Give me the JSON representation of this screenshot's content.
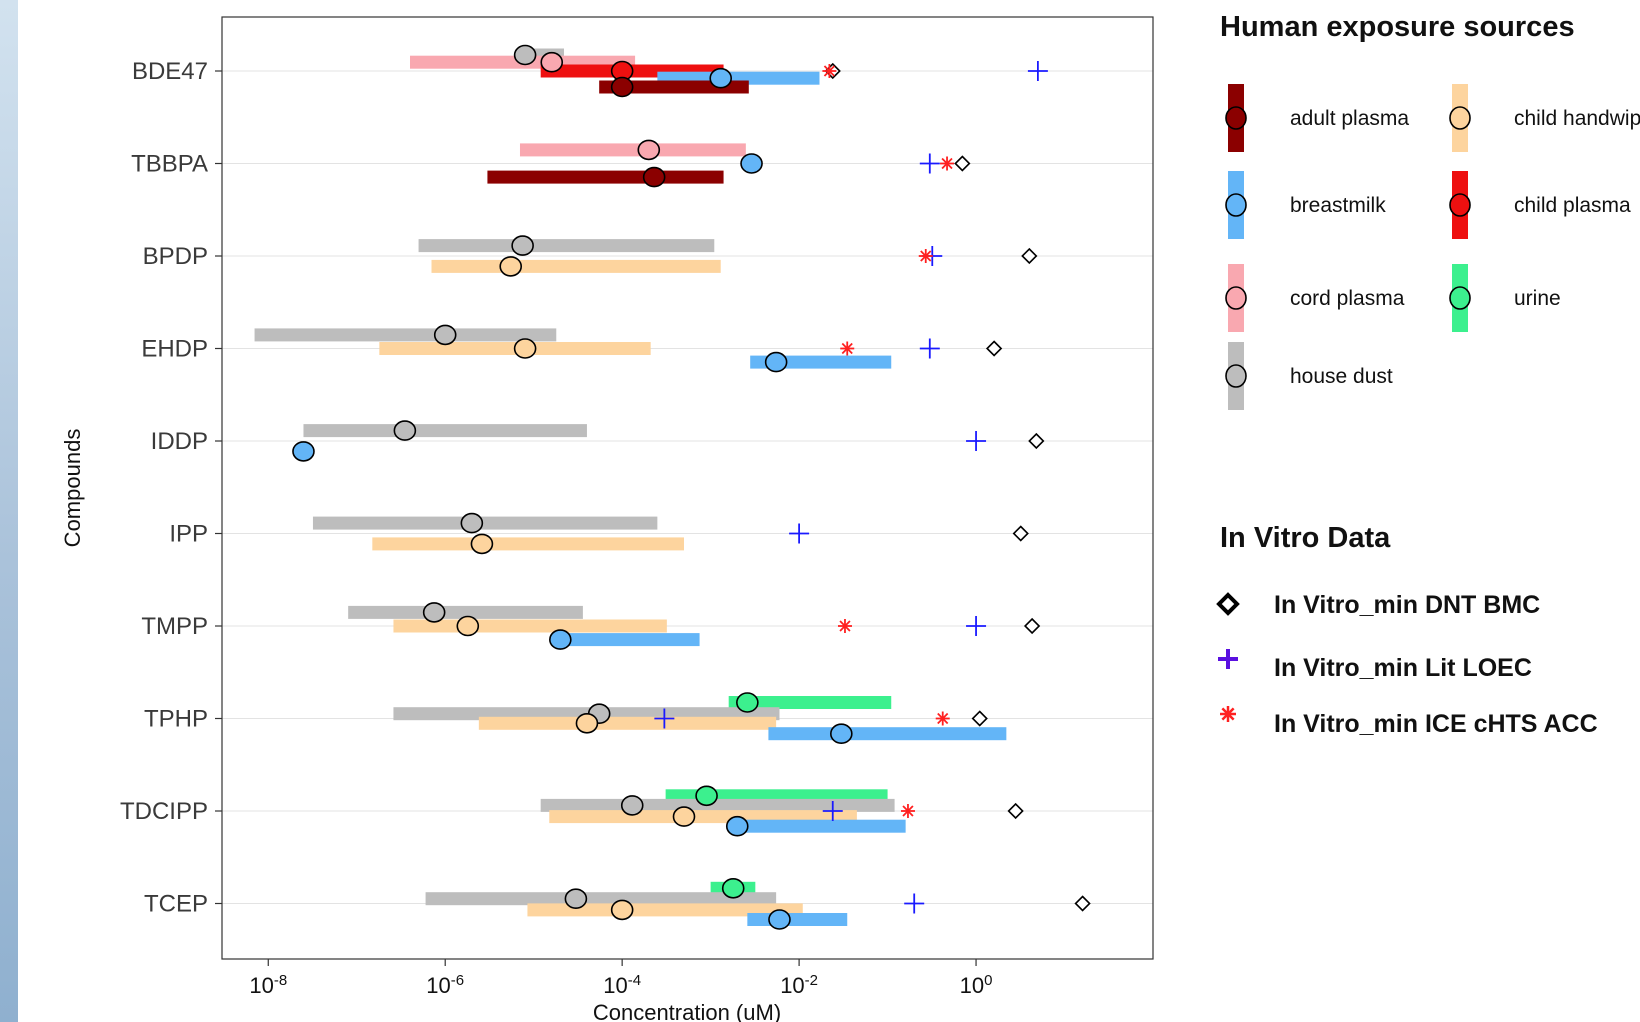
{
  "chart_data": {
    "type": "range-dot",
    "ylabel": "Compounds",
    "xlabel": "Concentration (uM)",
    "x_scale": "log10",
    "xlim": [
      3e-09,
      100
    ],
    "x_ticks": [
      {
        "value": 1e-08,
        "base": "10",
        "exp": "-8"
      },
      {
        "value": 1e-06,
        "base": "10",
        "exp": "-6"
      },
      {
        "value": 0.0001,
        "base": "10",
        "exp": "-4"
      },
      {
        "value": 0.01,
        "base": "10",
        "exp": "-2"
      },
      {
        "value": 1,
        "base": "10",
        "exp": "0"
      }
    ],
    "grid": "horizontal",
    "categories": [
      "BDE47",
      "TBBPA",
      "BPDP",
      "EHDP",
      "IDDP",
      "IPP",
      "TMPP",
      "TPHP",
      "TDCIPP",
      "TCEP"
    ],
    "colors": {
      "adult plasma": "#8b0000",
      "breastmilk": "#63b5f7",
      "cord plasma": "#f9a8b0",
      "house dust": "#bdbdbd",
      "child handwipe": "#fdd49e",
      "child plasma": "#ee1010",
      "urine": "#3cf08e"
    },
    "human_exposure": [
      {
        "compound": "BDE47",
        "source": "house dust",
        "min": 8e-06,
        "max": 2.2e-05,
        "median": 8e-06,
        "offset": -1
      },
      {
        "compound": "BDE47",
        "source": "cord plasma",
        "min": 4e-07,
        "max": 0.00014,
        "median": 1.6e-05,
        "offset": -0.55
      },
      {
        "compound": "BDE47",
        "source": "child plasma",
        "min": 1.2e-05,
        "max": 0.0014,
        "median": 0.0001,
        "offset": 0
      },
      {
        "compound": "BDE47",
        "source": "breastmilk",
        "min": 0.00025,
        "max": 0.017,
        "median": 0.0013,
        "offset": 0.45
      },
      {
        "compound": "BDE47",
        "source": "adult plasma",
        "min": 5.5e-05,
        "max": 0.0027,
        "median": 0.0001,
        "offset": 1
      },
      {
        "compound": "TBBPA",
        "source": "cord plasma",
        "min": 7e-06,
        "max": 0.0025,
        "median": 0.0002,
        "offset": -0.85
      },
      {
        "compound": "TBBPA",
        "source": "breastmilk",
        "min": 0.0029,
        "max": 0.0029,
        "median": 0.0029,
        "offset": 0
      },
      {
        "compound": "TBBPA",
        "source": "adult plasma",
        "min": 3e-06,
        "max": 0.0014,
        "median": 0.00023,
        "offset": 0.85
      },
      {
        "compound": "BPDP",
        "source": "house dust",
        "min": 5e-07,
        "max": 0.0011,
        "median": 7.5e-06,
        "offset": -0.65
      },
      {
        "compound": "BPDP",
        "source": "child handwipe",
        "min": 7e-07,
        "max": 0.0013,
        "median": 5.5e-06,
        "offset": 0.65
      },
      {
        "compound": "EHDP",
        "source": "house dust",
        "min": 7e-09,
        "max": 1.8e-05,
        "median": 1e-06,
        "offset": -0.85
      },
      {
        "compound": "EHDP",
        "source": "child handwipe",
        "min": 1.8e-07,
        "max": 0.00021,
        "median": 8e-06,
        "offset": 0
      },
      {
        "compound": "EHDP",
        "source": "breastmilk",
        "min": 0.0028,
        "max": 0.11,
        "median": 0.0055,
        "offset": 0.85
      },
      {
        "compound": "IDDP",
        "source": "house dust",
        "min": 2.5e-08,
        "max": 4e-05,
        "median": 3.5e-07,
        "offset": -0.65
      },
      {
        "compound": "IDDP",
        "source": "breastmilk",
        "min": 2.5e-08,
        "max": 2.5e-08,
        "median": 2.5e-08,
        "offset": 0.65
      },
      {
        "compound": "IPP",
        "source": "house dust",
        "min": 3.2e-08,
        "max": 0.00025,
        "median": 2e-06,
        "offset": -0.65
      },
      {
        "compound": "IPP",
        "source": "child handwipe",
        "min": 1.5e-07,
        "max": 0.0005,
        "median": 2.6e-06,
        "offset": 0.65
      },
      {
        "compound": "TMPP",
        "source": "house dust",
        "min": 8e-08,
        "max": 3.6e-05,
        "median": 7.5e-07,
        "offset": -0.85
      },
      {
        "compound": "TMPP",
        "source": "child handwipe",
        "min": 2.6e-07,
        "max": 0.00032,
        "median": 1.8e-06,
        "offset": 0
      },
      {
        "compound": "TMPP",
        "source": "breastmilk",
        "min": 2e-05,
        "max": 0.00075,
        "median": 2e-05,
        "offset": 0.85
      },
      {
        "compound": "TPHP",
        "source": "urine",
        "min": 0.0016,
        "max": 0.11,
        "median": 0.0026,
        "offset": -1
      },
      {
        "compound": "TPHP",
        "source": "house dust",
        "min": 2.6e-07,
        "max": 0.006,
        "median": 5.5e-05,
        "offset": -0.3
      },
      {
        "compound": "TPHP",
        "source": "child handwipe",
        "min": 2.4e-06,
        "max": 0.0055,
        "median": 4e-05,
        "offset": 0.3
      },
      {
        "compound": "TPHP",
        "source": "breastmilk",
        "min": 0.0045,
        "max": 2.2,
        "median": 0.03,
        "offset": 0.95
      },
      {
        "compound": "TDCIPP",
        "source": "urine",
        "min": 0.00031,
        "max": 0.1,
        "median": 0.0009,
        "offset": -0.95
      },
      {
        "compound": "TDCIPP",
        "source": "house dust",
        "min": 1.2e-05,
        "max": 0.12,
        "median": 0.00013,
        "offset": -0.35
      },
      {
        "compound": "TDCIPP",
        "source": "child handwipe",
        "min": 1.5e-05,
        "max": 0.045,
        "median": 0.0005,
        "offset": 0.35
      },
      {
        "compound": "TDCIPP",
        "source": "breastmilk",
        "min": 0.002,
        "max": 0.16,
        "median": 0.002,
        "offset": 0.95
      },
      {
        "compound": "TCEP",
        "source": "urine",
        "min": 0.001,
        "max": 0.0032,
        "median": 0.0018,
        "offset": -0.95
      },
      {
        "compound": "TCEP",
        "source": "house dust",
        "min": 6e-07,
        "max": 0.0055,
        "median": 3e-05,
        "offset": -0.3
      },
      {
        "compound": "TCEP",
        "source": "child handwipe",
        "min": 8.5e-06,
        "max": 0.011,
        "median": 0.0001,
        "offset": 0.4
      },
      {
        "compound": "TCEP",
        "source": "breastmilk",
        "min": 0.0026,
        "max": 0.035,
        "median": 0.006,
        "offset": 1
      }
    ],
    "in_vitro": [
      {
        "compound": "BDE47",
        "type": "In Vitro_min DNT BMC",
        "value": 0.024
      },
      {
        "compound": "BDE47",
        "type": "In Vitro_min Lit LOEC",
        "value": 5
      },
      {
        "compound": "BDE47",
        "type": "In Vitro_min ICE cHTS ACC",
        "value": 0.022
      },
      {
        "compound": "TBBPA",
        "type": "In Vitro_min DNT BMC",
        "value": 0.7
      },
      {
        "compound": "TBBPA",
        "type": "In Vitro_min Lit LOEC",
        "value": 0.3
      },
      {
        "compound": "TBBPA",
        "type": "In Vitro_min ICE cHTS ACC",
        "value": 0.47
      },
      {
        "compound": "BPDP",
        "type": "In Vitro_min DNT BMC",
        "value": 4
      },
      {
        "compound": "BPDP",
        "type": "In Vitro_min Lit LOEC",
        "value": 0.32
      },
      {
        "compound": "BPDP",
        "type": "In Vitro_min ICE cHTS ACC",
        "value": 0.27
      },
      {
        "compound": "EHDP",
        "type": "In Vitro_min DNT BMC",
        "value": 1.6
      },
      {
        "compound": "EHDP",
        "type": "In Vitro_min Lit LOEC",
        "value": 0.3
      },
      {
        "compound": "EHDP",
        "type": "In Vitro_min ICE cHTS ACC",
        "value": 0.035
      },
      {
        "compound": "IDDP",
        "type": "In Vitro_min DNT BMC",
        "value": 4.8
      },
      {
        "compound": "IDDP",
        "type": "In Vitro_min Lit LOEC",
        "value": 1
      },
      {
        "compound": "IPP",
        "type": "In Vitro_min DNT BMC",
        "value": 3.2
      },
      {
        "compound": "IPP",
        "type": "In Vitro_min Lit LOEC",
        "value": 0.01
      },
      {
        "compound": "TMPP",
        "type": "In Vitro_min DNT BMC",
        "value": 4.3
      },
      {
        "compound": "TMPP",
        "type": "In Vitro_min Lit LOEC",
        "value": 1
      },
      {
        "compound": "TMPP",
        "type": "In Vitro_min ICE cHTS ACC",
        "value": 0.033
      },
      {
        "compound": "TPHP",
        "type": "In Vitro_min DNT BMC",
        "value": 1.1
      },
      {
        "compound": "TPHP",
        "type": "In Vitro_min Lit LOEC",
        "value": 0.0003
      },
      {
        "compound": "TPHP",
        "type": "In Vitro_min ICE cHTS ACC",
        "value": 0.42
      },
      {
        "compound": "TDCIPP",
        "type": "In Vitro_min DNT BMC",
        "value": 2.8
      },
      {
        "compound": "TDCIPP",
        "type": "In Vitro_min Lit LOEC",
        "value": 0.024
      },
      {
        "compound": "TDCIPP",
        "type": "In Vitro_min ICE cHTS ACC",
        "value": 0.17
      },
      {
        "compound": "TCEP",
        "type": "In Vitro_min DNT BMC",
        "value": 16
      },
      {
        "compound": "TCEP",
        "type": "In Vitro_min Lit LOEC",
        "value": 0.2
      }
    ],
    "legend": {
      "exposure_title": "Human exposure sources",
      "exposure_items": [
        {
          "label": "adult plasma",
          "color": "#8b0000"
        },
        {
          "label": "breastmilk",
          "color": "#63b5f7"
        },
        {
          "label": "cord plasma",
          "color": "#f9a8b0"
        },
        {
          "label": "house dust",
          "color": "#bdbdbd"
        },
        {
          "label": "child handwip",
          "color": "#fdd49e"
        },
        {
          "label": "child plasma",
          "color": "#ee1010"
        },
        {
          "label": "urine",
          "color": "#3cf08e"
        }
      ],
      "invitro_title": "In Vitro Data",
      "invitro_items": [
        {
          "label": "In Vitro_min DNT BMC",
          "marker": "diamond"
        },
        {
          "label": "In Vitro_min Lit LOEC",
          "marker": "plus"
        },
        {
          "label": "In Vitro_min ICE cHTS ACC",
          "marker": "asterisk"
        }
      ],
      "placement": "right"
    }
  }
}
